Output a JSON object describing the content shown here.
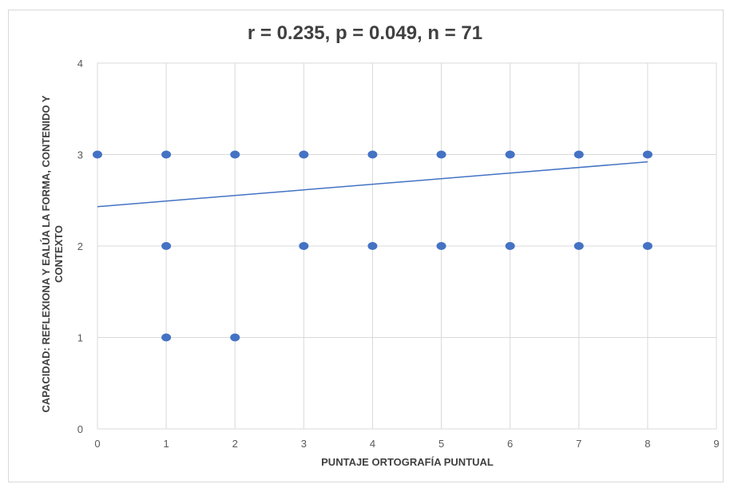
{
  "chart_data": {
    "type": "scatter",
    "title": "r = 0.235, p = 0.049, n = 71",
    "xlabel": "PUNTAJE ORTOGRAFÍA PUNTUAL",
    "ylabel_lines": [
      "CAPACIDAD: REFLEXIONA Y EALÚA LA FORMA, CONTENIDO Y",
      "CONTEXTO"
    ],
    "xlim": [
      0,
      9
    ],
    "ylim": [
      0,
      4
    ],
    "xticks": [
      0,
      1,
      2,
      3,
      4,
      5,
      6,
      7,
      8,
      9
    ],
    "yticks": [
      0,
      1,
      2,
      3,
      4
    ],
    "grid": true,
    "points": [
      {
        "x": 0,
        "y": 3
      },
      {
        "x": 1,
        "y": 3
      },
      {
        "x": 2,
        "y": 3
      },
      {
        "x": 3,
        "y": 3
      },
      {
        "x": 4,
        "y": 3
      },
      {
        "x": 5,
        "y": 3
      },
      {
        "x": 6,
        "y": 3
      },
      {
        "x": 7,
        "y": 3
      },
      {
        "x": 8,
        "y": 3
      },
      {
        "x": 1,
        "y": 2
      },
      {
        "x": 3,
        "y": 2
      },
      {
        "x": 4,
        "y": 2
      },
      {
        "x": 5,
        "y": 2
      },
      {
        "x": 6,
        "y": 2
      },
      {
        "x": 7,
        "y": 2
      },
      {
        "x": 8,
        "y": 2
      },
      {
        "x": 1,
        "y": 1
      },
      {
        "x": 2,
        "y": 1
      }
    ],
    "trendline": {
      "x": [
        0,
        8
      ],
      "y": [
        2.43,
        2.92
      ]
    },
    "colors": {
      "marker": "#4472c4",
      "trendline": "#4472c4",
      "grid": "#d9d9d9"
    }
  }
}
